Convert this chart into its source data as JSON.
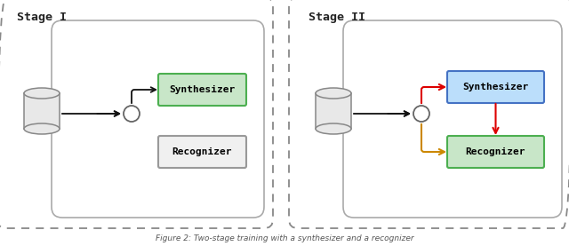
{
  "fig_width": 6.4,
  "fig_height": 2.77,
  "dpi": 100,
  "bg_color": "#ffffff",
  "stage1_title": "Stage I",
  "stage2_title": "Stage II",
  "synth_label": "Synthesizer",
  "recog_label": "Recognizer",
  "stage1_synth_fill": "#c8e6c8",
  "stage1_synth_edge": "#4caf50",
  "stage1_recog_fill": "#f0f0f0",
  "stage1_recog_edge": "#999999",
  "stage2_synth_fill": "#bbdefb",
  "stage2_synth_edge": "#4472c4",
  "stage2_recog_fill": "#c8e6c8",
  "stage2_recog_edge": "#4caf50",
  "arrow_black": "#111111",
  "arrow_red": "#dd0000",
  "arrow_orange": "#cc8800",
  "font_family": "monospace",
  "outer_dash_color": "#888888",
  "inner_solid_color": "#aaaaaa",
  "cyl_face": "#e8e8e8",
  "cyl_edge": "#888888",
  "circle_face": "#ffffff",
  "circle_edge": "#666666",
  "caption": "Figure 2: Two-stage training with a synthesizer and a recognizer"
}
